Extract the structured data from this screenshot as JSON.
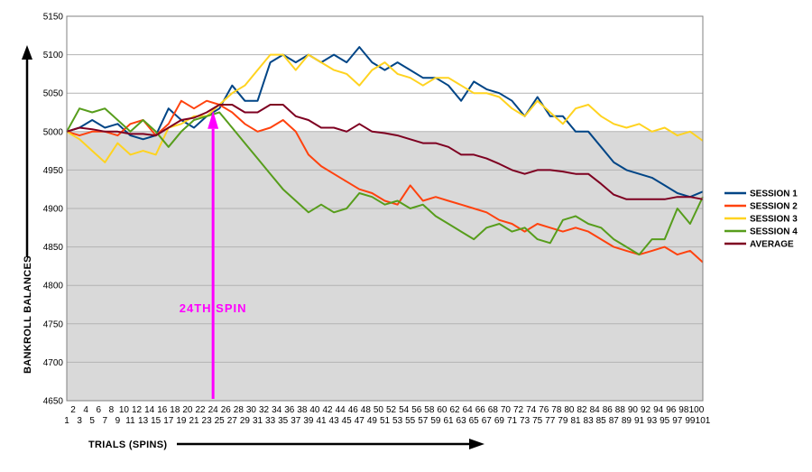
{
  "chart_data": {
    "type": "line",
    "title": "",
    "xlabel": "TRIALS  (SPINS)",
    "ylabel": "BANKROLL BALANCES",
    "xlim": [
      1,
      101
    ],
    "ylim": [
      4650,
      5150
    ],
    "ytick_step": 50,
    "baseline": 5000,
    "grid": "horizontal",
    "legend_position": "right",
    "x_tick_labels_top": [
      "2",
      "4",
      "6",
      "8",
      "10",
      "12",
      "14",
      "16",
      "18",
      "20",
      "22",
      "24",
      "26",
      "28",
      "30",
      "32",
      "34",
      "36",
      "38",
      "40",
      "42",
      "44",
      "46",
      "48",
      "50",
      "52",
      "54",
      "56",
      "58",
      "60",
      "62",
      "64",
      "66",
      "68",
      "70",
      "72",
      "74",
      "76",
      "78",
      "80",
      "82",
      "84",
      "86",
      "88",
      "90",
      "92",
      "94",
      "96",
      "98",
      "100"
    ],
    "x_tick_labels_bottom": [
      "1",
      "3",
      "5",
      "7",
      "9",
      "11",
      "13",
      "15",
      "17",
      "19",
      "21",
      "23",
      "25",
      "27",
      "29",
      "31",
      "33",
      "35",
      "37",
      "39",
      "41",
      "43",
      "45",
      "47",
      "49",
      "51",
      "53",
      "55",
      "57",
      "59",
      "61",
      "63",
      "65",
      "67",
      "69",
      "71",
      "73",
      "75",
      "77",
      "79",
      "81",
      "83",
      "85",
      "87",
      "89",
      "91",
      "93",
      "95",
      "97",
      "99",
      "101"
    ],
    "series": [
      {
        "name": "SESSION 1",
        "color": "#004586",
        "x": [
          1,
          3,
          5,
          7,
          9,
          11,
          13,
          15,
          17,
          19,
          21,
          23,
          25,
          27,
          29,
          31,
          33,
          35,
          37,
          39,
          41,
          43,
          45,
          47,
          49,
          51,
          53,
          55,
          57,
          59,
          61,
          63,
          65,
          67,
          69,
          71,
          73,
          75,
          77,
          79,
          81,
          83,
          85,
          87,
          89,
          91,
          93,
          95,
          97,
          99,
          101
        ],
        "y": [
          5000,
          5005,
          5015,
          5005,
          5010,
          4995,
          4990,
          4995,
          5030,
          5015,
          5005,
          5020,
          5030,
          5060,
          5040,
          5040,
          5090,
          5100,
          5090,
          5100,
          5090,
          5100,
          5090,
          5110,
          5090,
          5080,
          5090,
          5080,
          5070,
          5070,
          5060,
          5040,
          5065,
          5055,
          5050,
          5040,
          5020,
          5045,
          5020,
          5020,
          5000,
          5000,
          4980,
          4960,
          4950,
          4945,
          4940,
          4930,
          4920,
          4915,
          4922
        ]
      },
      {
        "name": "SESSION 2",
        "color": "#ff420e",
        "x": [
          1,
          3,
          5,
          7,
          9,
          11,
          13,
          15,
          17,
          19,
          21,
          23,
          25,
          27,
          29,
          31,
          33,
          35,
          37,
          39,
          41,
          43,
          45,
          47,
          49,
          51,
          53,
          55,
          57,
          59,
          61,
          63,
          65,
          67,
          69,
          71,
          73,
          75,
          77,
          79,
          81,
          83,
          85,
          87,
          89,
          91,
          93,
          95,
          97,
          99,
          101
        ],
        "y": [
          5000,
          4995,
          5000,
          5000,
          4995,
          5010,
          5015,
          4995,
          5010,
          5040,
          5030,
          5040,
          5035,
          5025,
          5010,
          5000,
          5005,
          5015,
          5000,
          4970,
          4955,
          4945,
          4935,
          4925,
          4920,
          4910,
          4905,
          4930,
          4910,
          4915,
          4910,
          4905,
          4900,
          4895,
          4885,
          4880,
          4870,
          4880,
          4875,
          4870,
          4875,
          4870,
          4860,
          4850,
          4845,
          4840,
          4845,
          4850,
          4840,
          4845,
          4830
        ]
      },
      {
        "name": "SESSION 3",
        "color": "#ffd320",
        "x": [
          1,
          3,
          5,
          7,
          9,
          11,
          13,
          15,
          17,
          19,
          21,
          23,
          25,
          27,
          29,
          31,
          33,
          35,
          37,
          39,
          41,
          43,
          45,
          47,
          49,
          51,
          53,
          55,
          57,
          59,
          61,
          63,
          65,
          67,
          69,
          71,
          73,
          75,
          77,
          79,
          81,
          83,
          85,
          87,
          89,
          91,
          93,
          95,
          97,
          99,
          101
        ],
        "y": [
          5000,
          4990,
          4975,
          4960,
          4985,
          4970,
          4975,
          4970,
          5005,
          5010,
          5020,
          5020,
          5035,
          5050,
          5060,
          5080,
          5100,
          5100,
          5080,
          5100,
          5090,
          5080,
          5075,
          5060,
          5080,
          5090,
          5075,
          5070,
          5060,
          5070,
          5070,
          5060,
          5050,
          5050,
          5045,
          5030,
          5020,
          5040,
          5025,
          5010,
          5030,
          5035,
          5020,
          5010,
          5005,
          5010,
          5000,
          5005,
          4995,
          5000,
          4988
        ]
      },
      {
        "name": "SESSION 4",
        "color": "#579d1c",
        "x": [
          1,
          3,
          5,
          7,
          9,
          11,
          13,
          15,
          17,
          19,
          21,
          23,
          25,
          27,
          29,
          31,
          33,
          35,
          37,
          39,
          41,
          43,
          45,
          47,
          49,
          51,
          53,
          55,
          57,
          59,
          61,
          63,
          65,
          67,
          69,
          71,
          73,
          75,
          77,
          79,
          81,
          83,
          85,
          87,
          89,
          91,
          93,
          95,
          97,
          99,
          101
        ],
        "y": [
          5000,
          5030,
          5025,
          5030,
          5015,
          5000,
          5015,
          5000,
          4980,
          5000,
          5015,
          5020,
          5025,
          5005,
          4985,
          4965,
          4945,
          4925,
          4910,
          4895,
          4905,
          4895,
          4900,
          4920,
          4915,
          4905,
          4910,
          4900,
          4905,
          4890,
          4880,
          4870,
          4860,
          4875,
          4880,
          4870,
          4875,
          4860,
          4855,
          4885,
          4890,
          4880,
          4875,
          4860,
          4850,
          4840,
          4860,
          4860,
          4900,
          4880,
          4915
        ]
      },
      {
        "name": "AVERAGE",
        "color": "#7e0021",
        "x": [
          1,
          3,
          5,
          7,
          9,
          11,
          13,
          15,
          17,
          19,
          21,
          23,
          25,
          27,
          29,
          31,
          33,
          35,
          37,
          39,
          41,
          43,
          45,
          47,
          49,
          51,
          53,
          55,
          57,
          59,
          61,
          63,
          65,
          67,
          69,
          71,
          73,
          75,
          77,
          79,
          81,
          83,
          85,
          87,
          89,
          91,
          93,
          95,
          97,
          99,
          101
        ],
        "y": [
          5000,
          5005,
          5003,
          5000,
          5000,
          4997,
          4997,
          4995,
          5005,
          5015,
          5018,
          5025,
          5035,
          5035,
          5025,
          5025,
          5035,
          5035,
          5020,
          5015,
          5005,
          5005,
          5000,
          5010,
          5000,
          4998,
          4995,
          4990,
          4985,
          4985,
          4980,
          4970,
          4970,
          4965,
          4958,
          4950,
          4945,
          4950,
          4950,
          4948,
          4945,
          4945,
          4932,
          4918,
          4912,
          4912,
          4912,
          4912,
          4915,
          4915,
          4912
        ]
      }
    ],
    "annotations": [
      {
        "text": "24TH   SPIN",
        "x": 24,
        "target_y": 5020,
        "color": "#ff00ff"
      }
    ]
  }
}
